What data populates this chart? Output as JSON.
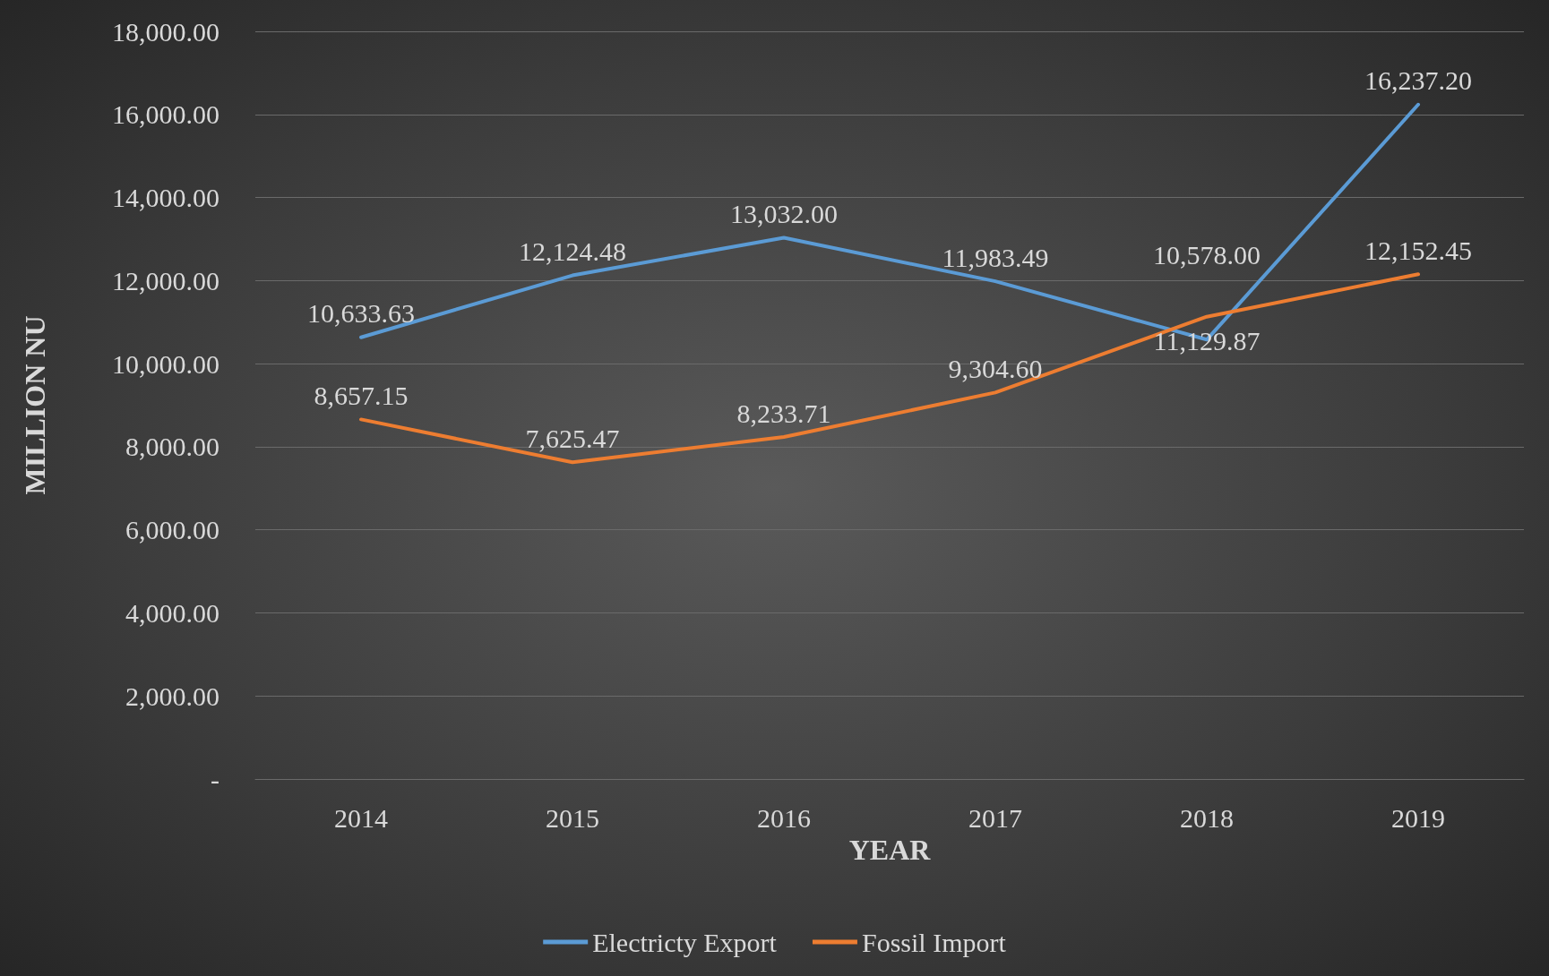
{
  "chart_data": {
    "type": "line",
    "xlabel": "YEAR",
    "ylabel": "MILLION NU",
    "categories": [
      "2014",
      "2015",
      "2016",
      "2017",
      "2018",
      "2019"
    ],
    "series": [
      {
        "name": "Electricty Export",
        "color": "#5b9bd5",
        "values": [
          10633.63,
          12124.48,
          13032.0,
          11983.49,
          10578.0,
          16237.2
        ],
        "value_labels": [
          "10,633.63",
          "12,124.48",
          "13,032.00",
          "11,983.49",
          "10,578.00",
          "16,237.20"
        ]
      },
      {
        "name": "Fossil Import",
        "color": "#ed7d31",
        "values": [
          8657.15,
          7625.47,
          8233.71,
          9304.6,
          11129.87,
          12152.45
        ],
        "value_labels": [
          "8,657.15",
          "7,625.47",
          "8,233.71",
          "9,304.60",
          "11,129.87",
          "12,152.45"
        ]
      }
    ],
    "ylim": [
      0,
      18000
    ],
    "yticks": [
      {
        "value": 0,
        "label": "-"
      },
      {
        "value": 2000,
        "label": "2,000.00"
      },
      {
        "value": 4000,
        "label": "4,000.00"
      },
      {
        "value": 6000,
        "label": "6,000.00"
      },
      {
        "value": 8000,
        "label": "8,000.00"
      },
      {
        "value": 10000,
        "label": "10,000.00"
      },
      {
        "value": 12000,
        "label": "12,000.00"
      },
      {
        "value": 14000,
        "label": "14,000.00"
      },
      {
        "value": 16000,
        "label": "16,000.00"
      },
      {
        "value": 18000,
        "label": "18,000.00"
      }
    ],
    "grid": "y",
    "legend": "bottom",
    "marker": "none",
    "line_style": "solid"
  }
}
